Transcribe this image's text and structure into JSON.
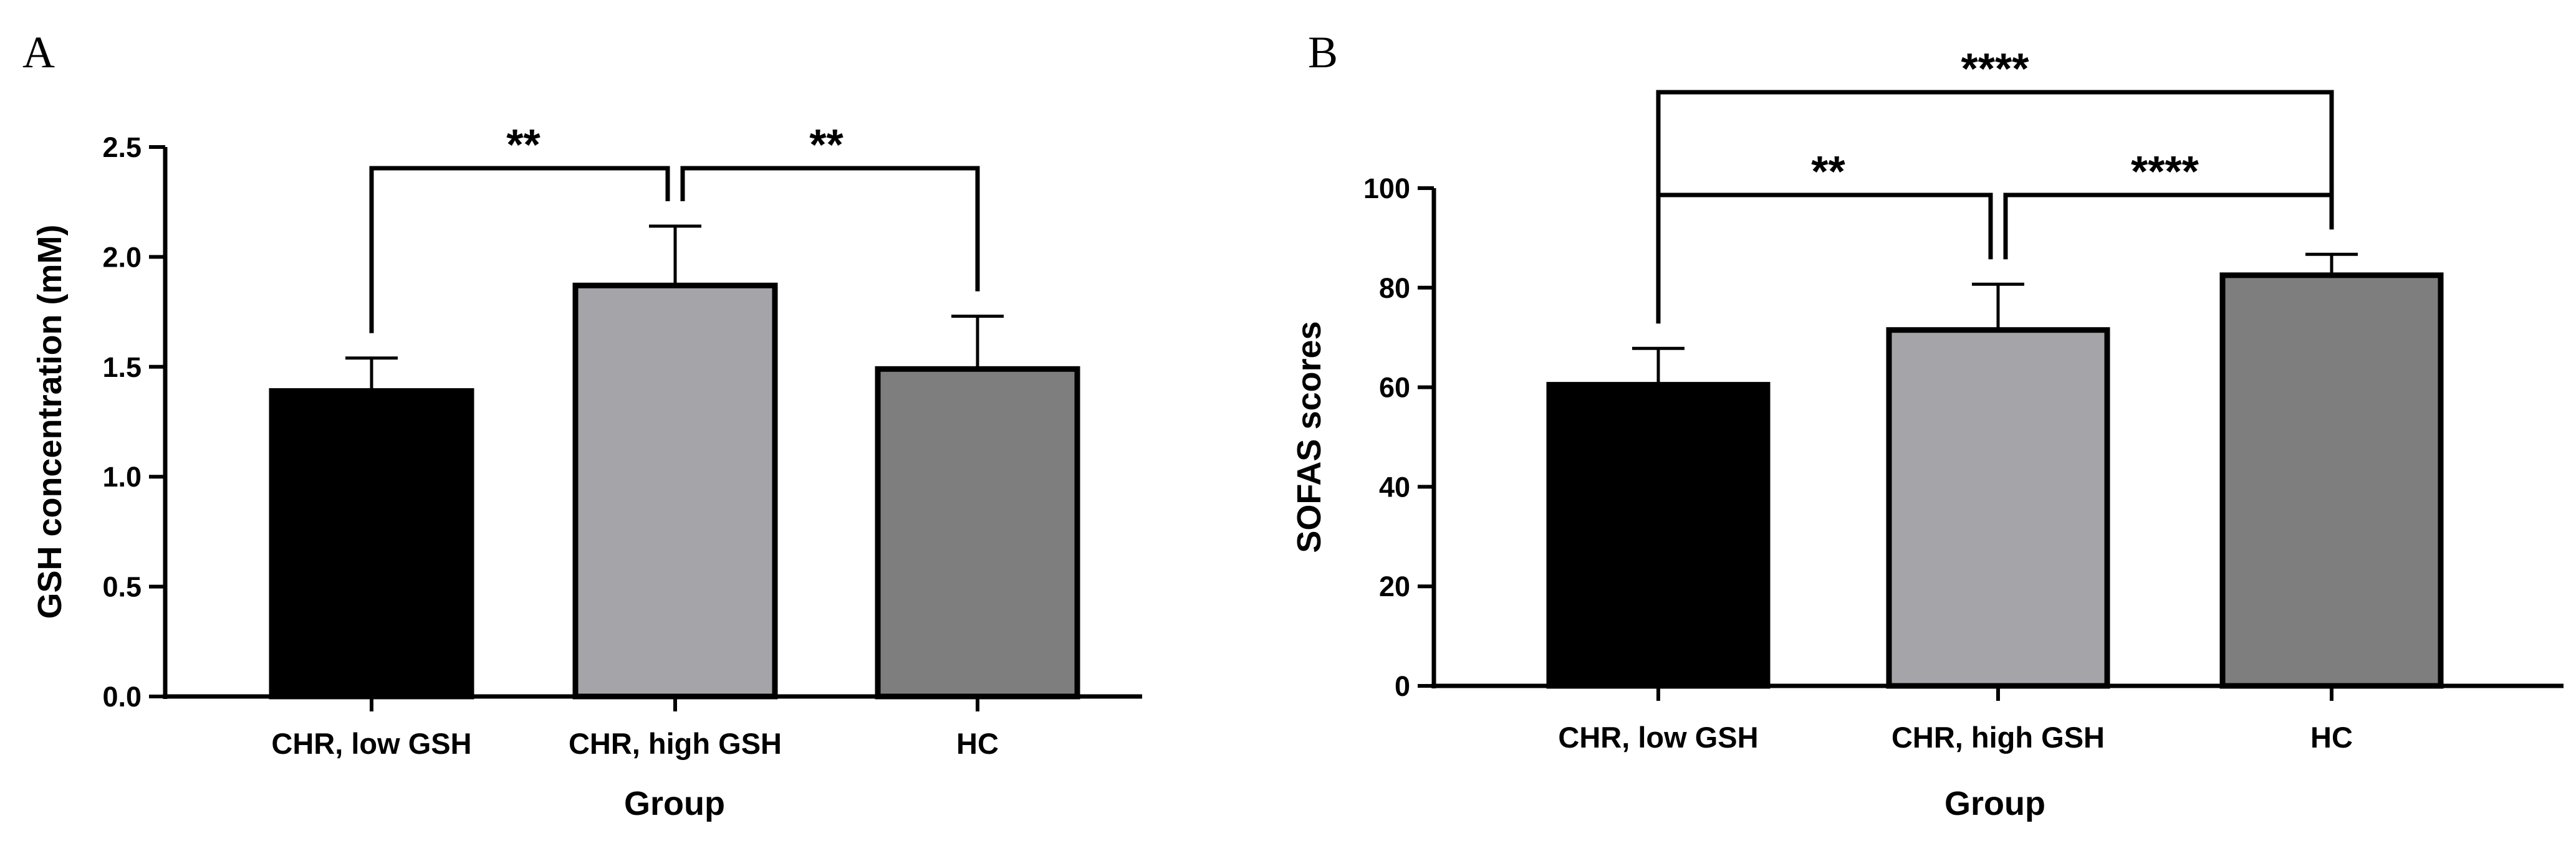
{
  "chart_data": [
    {
      "panel": "A",
      "type": "bar",
      "categories": [
        "CHR, low GSH",
        "CHR, high GSH",
        "HC"
      ],
      "values": [
        1.39,
        1.87,
        1.49
      ],
      "errors": [
        0.15,
        0.27,
        0.24
      ],
      "colors": [
        "#000000",
        "#a5a4a8",
        "#7e7e7e"
      ],
      "xlabel": "Group",
      "ylabel": "GSH concentration (mM)",
      "ylim": [
        0,
        2.5
      ],
      "yticks": [
        "0.0",
        "0.5",
        "1.0",
        "1.5",
        "2.0",
        "2.5"
      ],
      "significance": [
        {
          "from": 0,
          "to": 1,
          "label": "**"
        },
        {
          "from": 1,
          "to": 2,
          "label": "**"
        }
      ]
    },
    {
      "panel": "B",
      "type": "bar",
      "categories": [
        "CHR, low GSH",
        "CHR, high GSH",
        "HC"
      ],
      "values": [
        60.5,
        71.5,
        82.5
      ],
      "errors": [
        7.3,
        9.2,
        4.2
      ],
      "colors": [
        "#000000",
        "#a5a4a8",
        "#7e7e7e"
      ],
      "xlabel": "Group",
      "ylabel": "SOFAS scores",
      "ylim": [
        0,
        100
      ],
      "yticks": [
        "0",
        "20",
        "40",
        "60",
        "80",
        "100"
      ],
      "significance": [
        {
          "from": 0,
          "to": 1,
          "label": "**"
        },
        {
          "from": 1,
          "to": 2,
          "label": "****"
        },
        {
          "from": 0,
          "to": 2,
          "label": "****"
        }
      ]
    }
  ]
}
